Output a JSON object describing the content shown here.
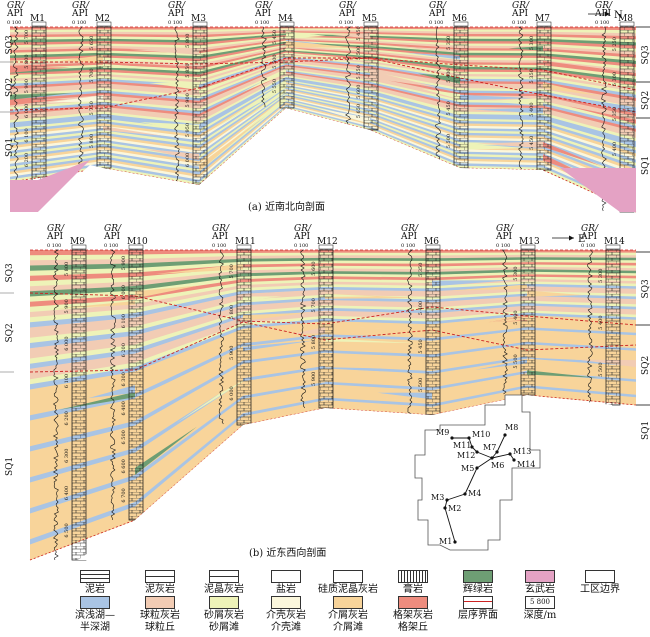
{
  "figure": {
    "panels": [
      {
        "id": "a",
        "caption": "(a) 近南北向剖面",
        "direction_label": "N",
        "wells": [
          {
            "name": "M1",
            "log_label_top": "GR/",
            "log_label_unit": "API",
            "log_scale": "0  100",
            "depths": [
              "5 700",
              "5 800",
              "5 900",
              "6 000",
              "6 100",
              "6 200"
            ]
          },
          {
            "name": "M2",
            "log_label_top": "GR/",
            "log_label_unit": "API",
            "log_scale": "0  100",
            "depths": [
              "5 650",
              "5 700",
              "5 750",
              "5 800"
            ]
          },
          {
            "name": "M3",
            "log_label_top": "GR/",
            "log_label_unit": "API",
            "log_scale": "0  100",
            "depths": [
              "5 800",
              "5 850",
              "5 900",
              "5 950",
              "6 000"
            ]
          },
          {
            "name": "M4",
            "log_label_top": "GR/",
            "log_label_unit": "API",
            "log_scale": "0  100",
            "depths": [
              "5 450",
              "5 500",
              "5 550"
            ]
          },
          {
            "name": "M5",
            "log_label_top": "GR/",
            "log_label_unit": "API",
            "log_scale": "0  100",
            "depths": [
              "5 450",
              "5 500",
              "5 550",
              "5 600",
              "5 650"
            ]
          },
          {
            "name": "M6",
            "log_label_top": "GR/",
            "log_label_unit": "API",
            "log_scale": "0  100",
            "depths": [
              "5 350",
              "5 400",
              "5 450",
              "5 500"
            ]
          },
          {
            "name": "M7",
            "log_label_top": "GR/",
            "log_label_unit": "API",
            "log_scale": "0  100",
            "depths": [
              "5 300",
              "5 350",
              "5 400",
              "5 450"
            ]
          },
          {
            "name": "M8",
            "log_label_top": "GR/",
            "log_label_unit": "API",
            "log_scale": "0  100",
            "depths": [
              "5 250",
              "5 300",
              "5 350",
              "5 400",
              "5 450"
            ]
          }
        ],
        "sequences_left": [
          "SQ3",
          "SQ2",
          "SQ1"
        ],
        "sequences_right": [
          "SQ3",
          "SQ2",
          "SQ1"
        ]
      },
      {
        "id": "b",
        "caption": "(b) 近东西向剖面",
        "direction_label": "E",
        "wells": [
          {
            "name": "M9",
            "log_label_top": "GR/",
            "log_label_unit": "API",
            "log_scale": "0  100",
            "depths": [
              "5 800",
              "5 900",
              "6 000",
              "6 100",
              "6 200",
              "6 300",
              "6 400",
              "6 500"
            ]
          },
          {
            "name": "M10",
            "log_label_top": "GR/",
            "log_label_unit": "API",
            "log_scale": "0  100",
            "depths": [
              "5 900",
              "6 000",
              "6 100",
              "6 200",
              "6 300",
              "6 400",
              "6 500",
              "6 600",
              "6 700"
            ]
          },
          {
            "name": "M11",
            "log_label_top": "GR/",
            "log_label_unit": "API",
            "log_scale": "0  100",
            "depths": [
              "5 700",
              "5 800",
              "5 900",
              "6 000"
            ]
          },
          {
            "name": "M12",
            "log_label_top": "GR/",
            "log_label_unit": "API",
            "log_scale": "0  100",
            "depths": [
              "5 600",
              "5 700",
              "5 800",
              "5 900"
            ]
          },
          {
            "name": "M6",
            "log_label_top": "GR/",
            "log_label_unit": "API",
            "log_scale": "0  100",
            "depths": [
              "5 350",
              "5 400",
              "5 450",
              "5 500"
            ]
          },
          {
            "name": "M13",
            "log_label_top": "GR/",
            "log_label_unit": "API",
            "log_scale": "0  100",
            "depths": [
              "5 300",
              "5 400",
              "5 500"
            ]
          },
          {
            "name": "M14",
            "log_label_top": "GR/",
            "log_label_unit": "API",
            "log_scale": "0  100",
            "depths": [
              "5 300",
              "5 400",
              "5 500"
            ]
          }
        ],
        "sequences_left": [
          "SQ3",
          "SQ2",
          "SQ1"
        ],
        "sequences_right": [
          "SQ3",
          "SQ2",
          "SQ1"
        ]
      }
    ],
    "inset_map": {
      "wells": [
        "M1",
        "M2",
        "M3",
        "M4",
        "M5",
        "M6",
        "M7",
        "M8",
        "M9",
        "M10",
        "M11",
        "M12",
        "M13",
        "M14"
      ]
    }
  },
  "legend": {
    "row1": [
      {
        "label": "泥岩",
        "swatch": "mudstone"
      },
      {
        "label": "泥灰岩",
        "swatch": "marl"
      },
      {
        "label": "泥晶灰岩",
        "swatch": "micrite"
      },
      {
        "label": "盐岩",
        "swatch": "salt"
      },
      {
        "label": "硅质泥晶灰岩",
        "swatch": "siliceous-micrite"
      },
      {
        "label": "膏岩",
        "swatch": "gypsum"
      },
      {
        "label": "辉绿岩",
        "swatch": "diabase"
      },
      {
        "label": "玄武岩",
        "swatch": "basalt"
      },
      {
        "label": "工区边界",
        "swatch": "boundary"
      }
    ],
    "row2": [
      {
        "label": "滨浅湖—",
        "label2": "半深湖",
        "swatch": "lake"
      },
      {
        "label": "球粒灰岩",
        "label2": "球粒丘",
        "swatch": "pellet"
      },
      {
        "label": "砂屑灰岩",
        "label2": "砂屑滩",
        "swatch": "sand"
      },
      {
        "label": "介壳灰岩",
        "label2": "介壳滩",
        "swatch": "shell"
      },
      {
        "label": "介屑灰岩",
        "label2": "介屑滩",
        "swatch": "bioclast"
      },
      {
        "label": "格架灰岩",
        "label2": "格架丘",
        "swatch": "framework"
      },
      {
        "label": "层序界面",
        "swatch": "seq-boundary"
      },
      {
        "label": "深度/m",
        "swatch": "depth",
        "swatch_text": "5 800"
      }
    ]
  },
  "colors": {
    "lake": "#a9c4e4",
    "pellet": "#f2ccb4",
    "sand": "#eef3b8",
    "shell": "#fbf7dc",
    "bioclast": "#f8d49a",
    "framework": "#ee8c7e",
    "diabase": "#6e9e74",
    "basalt": "#e4a2c4",
    "seq_boundary": "#cc2222"
  }
}
